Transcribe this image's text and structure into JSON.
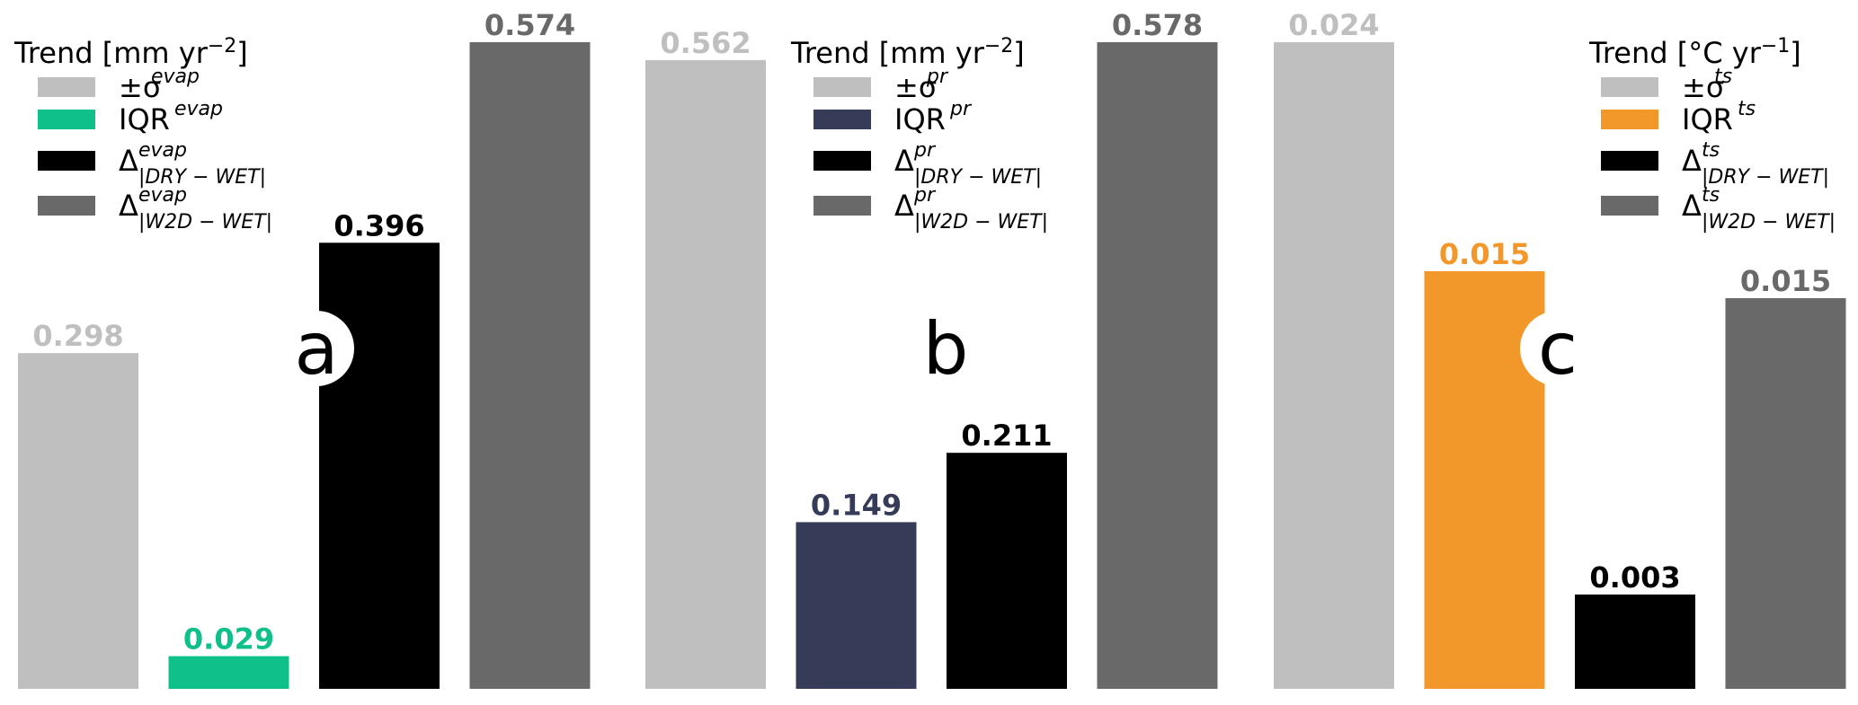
{
  "chart_data": [
    {
      "type": "bar",
      "panel_label": "a",
      "legend": {
        "title": {
          "main": "Trend [mm yr",
          "sup": "−2",
          "end": "]"
        },
        "location": "top-left",
        "entries": [
          {
            "base": "±σ",
            "sup": "evap",
            "sub": ""
          },
          {
            "base": "IQR",
            "sup": "evap",
            "sub": ""
          },
          {
            "base": "Δ",
            "sup": "evap",
            "sub": "|DRY − WET|"
          },
          {
            "base": "Δ",
            "sup": "evap",
            "sub": "|W2D − WET|"
          }
        ]
      },
      "values": [
        0.298,
        0.029,
        0.396,
        0.574
      ],
      "value_labels": [
        "0.298",
        "0.029",
        "0.396",
        "0.574"
      ],
      "colors": [
        "#bfbfbf",
        "#10c08b",
        "#000000",
        "#696969"
      ],
      "ylim": [
        0,
        0.574
      ]
    },
    {
      "type": "bar",
      "panel_label": "b",
      "legend": {
        "title": {
          "main": "Trend [mm yr",
          "sup": "−2",
          "end": "]"
        },
        "location": "top-center",
        "entries": [
          {
            "base": "±σ",
            "sup": "pr",
            "sub": ""
          },
          {
            "base": "IQR",
            "sup": "pr",
            "sub": ""
          },
          {
            "base": "Δ",
            "sup": "pr",
            "sub": "|DRY − WET|"
          },
          {
            "base": "Δ",
            "sup": "pr",
            "sub": "|W2D − WET|"
          }
        ]
      },
      "values": [
        0.562,
        0.149,
        0.211,
        0.578
      ],
      "value_labels": [
        "0.562",
        "0.149",
        "0.211",
        "0.578"
      ],
      "colors": [
        "#bfbfbf",
        "#363b58",
        "#000000",
        "#696969"
      ],
      "ylim": [
        0,
        0.578
      ]
    },
    {
      "type": "bar",
      "panel_label": "c",
      "legend": {
        "title": {
          "main": "Trend [°C yr",
          "sup": "−1",
          "end": "]"
        },
        "location": "top-right",
        "entries": [
          {
            "base": "±σ",
            "sup": "ts",
            "sub": ""
          },
          {
            "base": "IQR",
            "sup": "ts",
            "sub": ""
          },
          {
            "base": "Δ",
            "sup": "ts",
            "sub": "|DRY − WET|"
          },
          {
            "base": "Δ",
            "sup": "ts",
            "sub": "|W2D − WET|"
          }
        ]
      },
      "values": [
        0.024,
        0.0155,
        0.0035,
        0.0145
      ],
      "value_labels": [
        "0.024",
        "0.015",
        "0.003",
        "0.015"
      ],
      "colors": [
        "#bfbfbf",
        "#f2982b",
        "#000000",
        "#696969"
      ],
      "ylim": [
        0,
        0.024
      ]
    }
  ]
}
